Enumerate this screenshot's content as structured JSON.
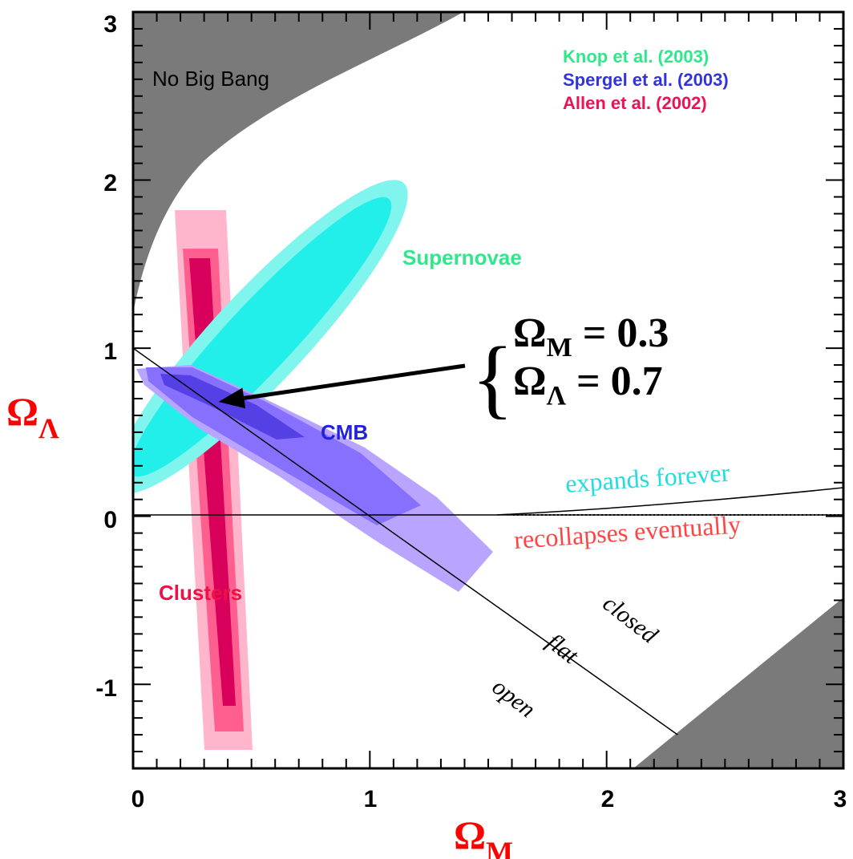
{
  "chart_data": {
    "type": "contour",
    "xlabel": "Ω",
    "xlabel_sub": "M",
    "ylabel": "Ω",
    "ylabel_sub": "Λ",
    "xlim": [
      0,
      3
    ],
    "ylim": [
      -1.5,
      3
    ],
    "x_ticks": [
      "0",
      "1",
      "2",
      "3"
    ],
    "y_ticks": [
      "-1",
      "0",
      "1",
      "2",
      "3"
    ],
    "legend": [
      {
        "label": "Knop et al. (2003)",
        "color": "#2ee88a"
      },
      {
        "label": "Spergel et al.  (2003)",
        "color": "#3333dd"
      },
      {
        "label": "Allen et al. (2002)",
        "color": "#ee1155"
      }
    ],
    "regions": {
      "no_big_bang": "No Big Bang",
      "supernovae": "Supernovae",
      "cmb": "CMB",
      "clusters": "Clusters"
    },
    "lines": {
      "flat_line": {
        "points": [
          [
            0,
            1
          ],
          [
            2.3,
            -1.3
          ]
        ]
      },
      "expands_forever": "expands forever",
      "recollapses_eventually": "recollapses eventually",
      "closed": "closed",
      "flat": "flat",
      "open": "open"
    },
    "best_fit": {
      "point": [
        0.3,
        0.7
      ],
      "line1_base": "Ω",
      "line1_sub": "M",
      "line1_value": " = 0.3",
      "line2_base": "Ω",
      "line2_sub": "Λ",
      "line2_value": " = 0.7"
    },
    "colors": {
      "no_big_bang": "#7a7a7a",
      "supernovae_outer": "#7ff5ee",
      "supernovae_inner": "#22eeea",
      "cmb_outer": "#b9a4ff",
      "cmb_mid": "#8870ff",
      "cmb_inner": "#5540e6",
      "clusters_outer": "#ffb6cc",
      "clusters_mid": "#ff5f8f",
      "clusters_inner": "#d8005a",
      "axis_label": "#ff0000",
      "expands_text": "#22dddd",
      "recollapse_text": "#ff4444"
    }
  }
}
